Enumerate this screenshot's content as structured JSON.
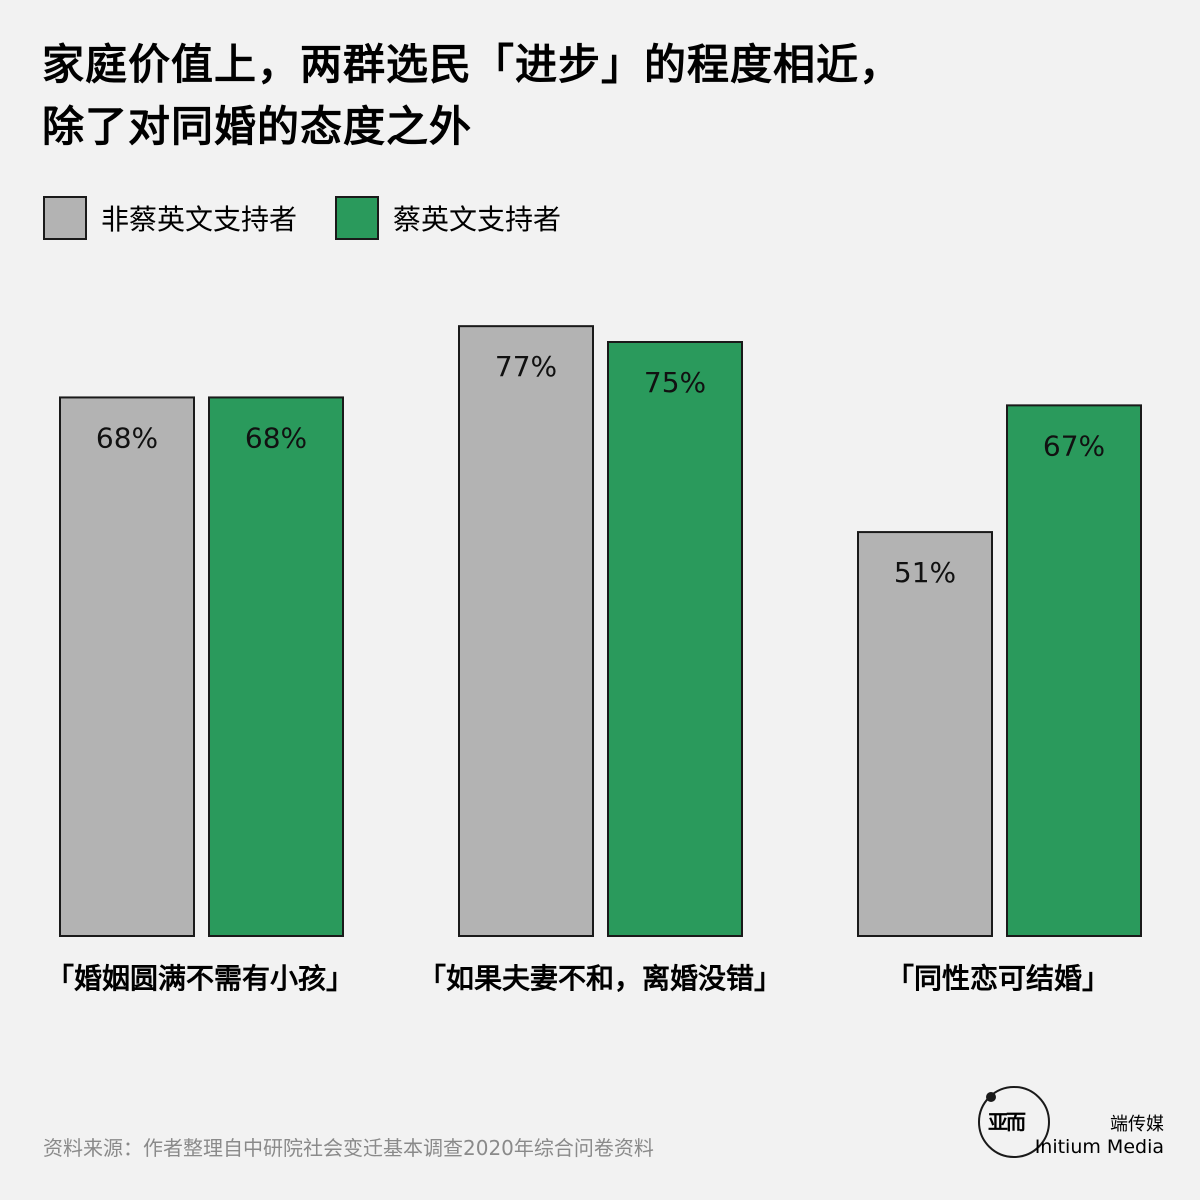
{
  "title": {
    "line1": "家庭价值上，两群选民「进步」的程度相近，",
    "line2": "除了对同婚的态度之外"
  },
  "legend": [
    {
      "label": "非蔡英文支持者",
      "color": "#b3b3b3"
    },
    {
      "label": "蔡英文支持者",
      "color": "#2a9a5c"
    }
  ],
  "chart_data": {
    "type": "bar",
    "categories": [
      "「婚姻圆满不需有小孩」",
      "「如果夫妻不和，离婚没错」",
      "「同性恋可结婚」"
    ],
    "series": [
      {
        "name": "非蔡英文支持者",
        "values": [
          68,
          77,
          51
        ],
        "color": "#b3b3b3"
      },
      {
        "name": "蔡英文支持者",
        "values": [
          68,
          75,
          67
        ],
        "color": "#2a9a5c"
      }
    ],
    "value_suffix": "%",
    "ylim": [
      0,
      100
    ],
    "grid": false,
    "legend_position": "top-left"
  },
  "source": "资料来源：作者整理自中研院社会变迁基本调查2020年综合问卷资料",
  "brand": {
    "zh": "端传媒",
    "en": "Initium Media",
    "logo_text": "亚而"
  }
}
